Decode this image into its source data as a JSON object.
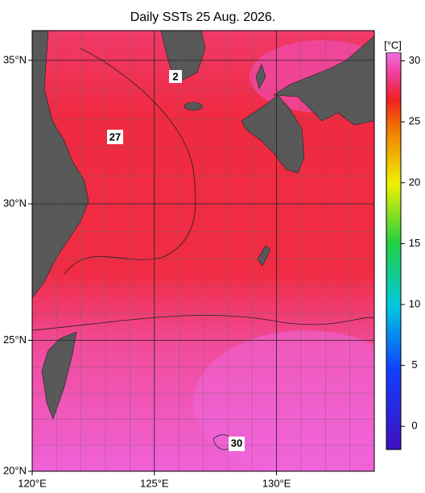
{
  "title": "Daily SSTs 25 Aug. 2026.",
  "map": {
    "lon_range": [
      120,
      134
    ],
    "lat_range": [
      20,
      36
    ],
    "lon_ticks": [
      {
        "value": 120,
        "label": "120°E"
      },
      {
        "value": 125,
        "label": "125°E"
      },
      {
        "value": 130,
        "label": "130°E"
      }
    ],
    "lat_ticks": [
      {
        "value": 20,
        "label": "20°N"
      },
      {
        "value": 25,
        "label": "25°N"
      },
      {
        "value": 30,
        "label": "30°N"
      },
      {
        "value": 35,
        "label": "35°N"
      }
    ]
  },
  "contour_labels": [
    "2",
    "27",
    "30"
  ],
  "colorbar": {
    "unit": "[°C]",
    "range": [
      -1.9,
      30.7
    ],
    "ticks": [
      0,
      5,
      10,
      15,
      20,
      25,
      30
    ]
  }
}
